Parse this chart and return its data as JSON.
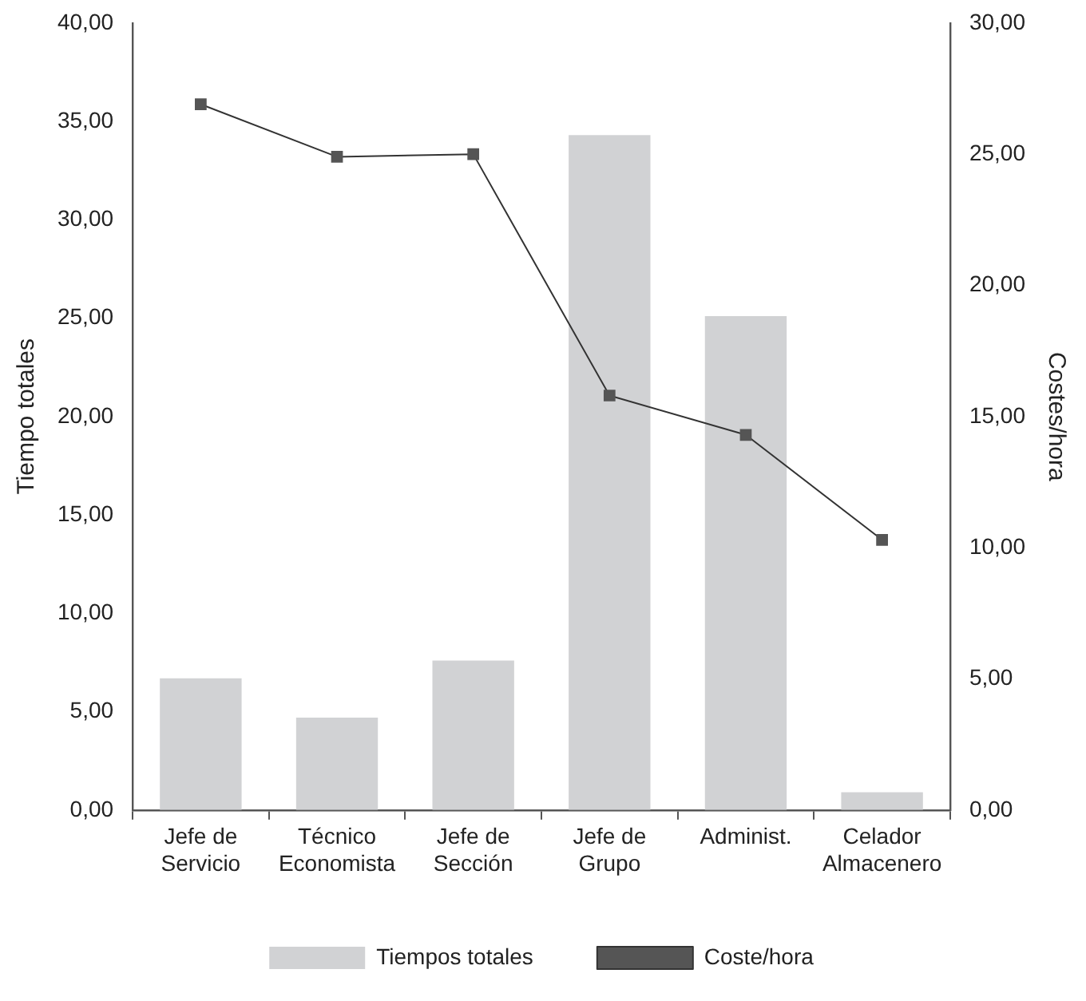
{
  "chart_data": {
    "type": "bar",
    "ylabel": "Tiempo totales",
    "y2label": "Costes/hora",
    "categories": [
      "Jefe de Servicio",
      "Técnico Economista",
      "Jefe de Sección",
      "Jefe de Grupo",
      "Administ.",
      "Celador Almacenero"
    ],
    "series": [
      {
        "name": "Tiempos totales",
        "color": "#d1d2d4",
        "values": [
          6.7,
          4.7,
          7.6,
          34.3,
          25.1,
          0.9
        ]
      },
      {
        "name": "Coste/hora",
        "type": "line",
        "axis": "y2",
        "color": "#333333",
        "marker": "square",
        "values": [
          26.9,
          24.9,
          25.0,
          15.8,
          14.3,
          10.3
        ]
      }
    ],
    "ylim": [
      0,
      40
    ],
    "yticks": [
      {
        "value": 0,
        "label": "0,00"
      },
      {
        "value": 5,
        "label": "5,00"
      },
      {
        "value": 10,
        "label": "10,00"
      },
      {
        "value": 15,
        "label": "15,00"
      },
      {
        "value": 20,
        "label": "20,00"
      },
      {
        "value": 25,
        "label": "25,00"
      },
      {
        "value": 30,
        "label": "30,00"
      },
      {
        "value": 35,
        "label": "35,00"
      },
      {
        "value": 40,
        "label": "40,00"
      }
    ],
    "y2lim": [
      0,
      30
    ],
    "y2ticks": [
      {
        "value": 0,
        "label": "0,00"
      },
      {
        "value": 5,
        "label": "5,00"
      },
      {
        "value": 10,
        "label": "10,00"
      },
      {
        "value": 15,
        "label": "15,00"
      },
      {
        "value": 20,
        "label": "20,00"
      },
      {
        "value": 25,
        "label": "25,00"
      },
      {
        "value": 30,
        "label": "30,00"
      }
    ],
    "grid": false,
    "legend": "bottom"
  }
}
